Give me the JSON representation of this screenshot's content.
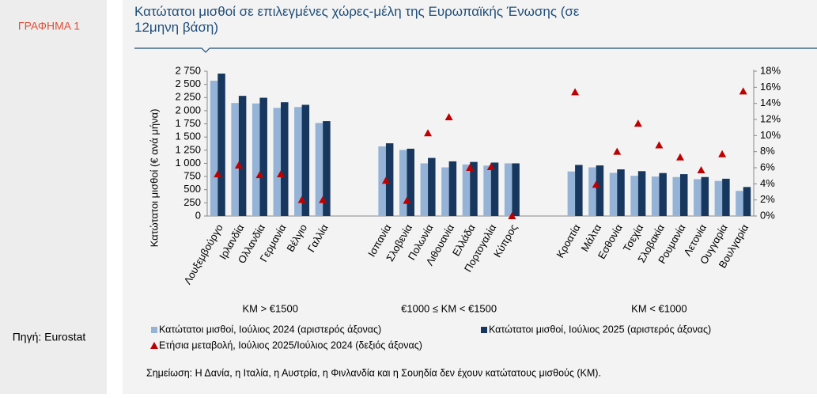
{
  "side_label": "ΓΡΑΦΗΜΑ 1",
  "source": "Πηγή: Eurostat",
  "chart_data": {
    "type": "bar",
    "title": "Κατώτατοι  μισθοί σε επιλεγμένες  χώρες-μέλη της Ευρωπαϊκής Ένωσης (σε 12μηνη βάση)",
    "ylabel": "Κατώτατοι μισθοί (€ ανά μήνα)",
    "categories": [
      "Λουξεμβούργο",
      "Ιρλανδία",
      "Ολλανδία",
      "Γερμανία",
      "Βέλγιο",
      "Γαλλία",
      null,
      null,
      "Ισπανία",
      "Σλοβενία",
      "Πολωνία",
      "Λιθουανία",
      "Ελλάδα",
      "Πορτογαλία",
      "Κύπρος",
      null,
      null,
      "Κροατία",
      "Μάλτα",
      "Εσθονία",
      "Τσεχία",
      "Σλοβακία",
      "Ρουμανία",
      "Λετονία",
      "Ουγγαρία",
      "Βουλγαρία"
    ],
    "group_labels": [
      "ΚΜ > €1500",
      "€1000 ≤ ΚΜ  < €1500",
      "ΚΜ < €1000"
    ],
    "series": [
      {
        "name": "Κατώτατοι μισθοί, Ιούλιος 2024 (αριστερός άξονας)",
        "color": "#95b3d7",
        "type": "bar",
        "values": [
          2570,
          2146,
          2138,
          2054,
          2070,
          1767,
          null,
          null,
          1323,
          1254,
          1000,
          924,
          979,
          957,
          1000,
          null,
          null,
          846,
          925,
          820,
          764,
          750,
          740,
          700,
          667,
          477
        ]
      },
      {
        "name": "Κατώτατοι μισθοί, Ιούλιος 2025 (αριστερός άξονας)",
        "color": "#17375e",
        "type": "bar",
        "values": [
          2705,
          2282,
          2246,
          2161,
          2112,
          1802,
          null,
          null,
          1381,
          1278,
          1103,
          1038,
          1027,
          1015,
          1000,
          null,
          null,
          970,
          961,
          886,
          852,
          816,
          795,
          740,
          708,
          551
        ]
      },
      {
        "name": "Ετήσια μεταβολή, Ιούλιος 2025/Ιούλιος 2024 (δεξιός άξονας)",
        "color": "#c00000",
        "type": "scatter",
        "axis": "y2",
        "values": [
          5.2,
          6.3,
          5.1,
          5.2,
          2.0,
          2.0,
          null,
          null,
          4.4,
          1.9,
          10.3,
          12.3,
          6.0,
          6.1,
          0,
          null,
          null,
          15.4,
          3.9,
          8.0,
          11.5,
          8.8,
          7.3,
          5.7,
          7.7,
          15.5
        ]
      }
    ],
    "ylim": [
      0,
      2750
    ],
    "yticks": [
      0,
      250,
      500,
      750,
      {
        "value": 1000,
        "label": "1 000"
      },
      {
        "value": 1250,
        "label": "1 250"
      },
      {
        "value": 1500,
        "label": "1 500"
      },
      {
        "value": 1750,
        "label": "1 750"
      },
      {
        "value": 2000,
        "label": "2 000"
      },
      {
        "value": 2250,
        "label": "2 250"
      },
      {
        "value": 2500,
        "label": "2 500"
      },
      {
        "value": 2750,
        "label": "2 750"
      }
    ],
    "y2lim": [
      0,
      18
    ],
    "y2ticks": [
      {
        "value": 0,
        "label": "0%"
      },
      {
        "value": 2,
        "label": "2%"
      },
      {
        "value": 4,
        "label": "4%"
      },
      {
        "value": 6,
        "label": "6%"
      },
      {
        "value": 8,
        "label": "8%"
      },
      {
        "value": 10,
        "label": "10%"
      },
      {
        "value": 12,
        "label": "12%"
      },
      {
        "value": 14,
        "label": "14%"
      },
      {
        "value": 16,
        "label": "16%"
      },
      {
        "value": 18,
        "label": "18%"
      }
    ],
    "note": "Σημείωση: Η Δανία, η Ιταλία, η Αυστρία, η Φινλανδία και η Σουηδία δεν έχουν κατώτατους μισθούς (ΚΜ)."
  }
}
